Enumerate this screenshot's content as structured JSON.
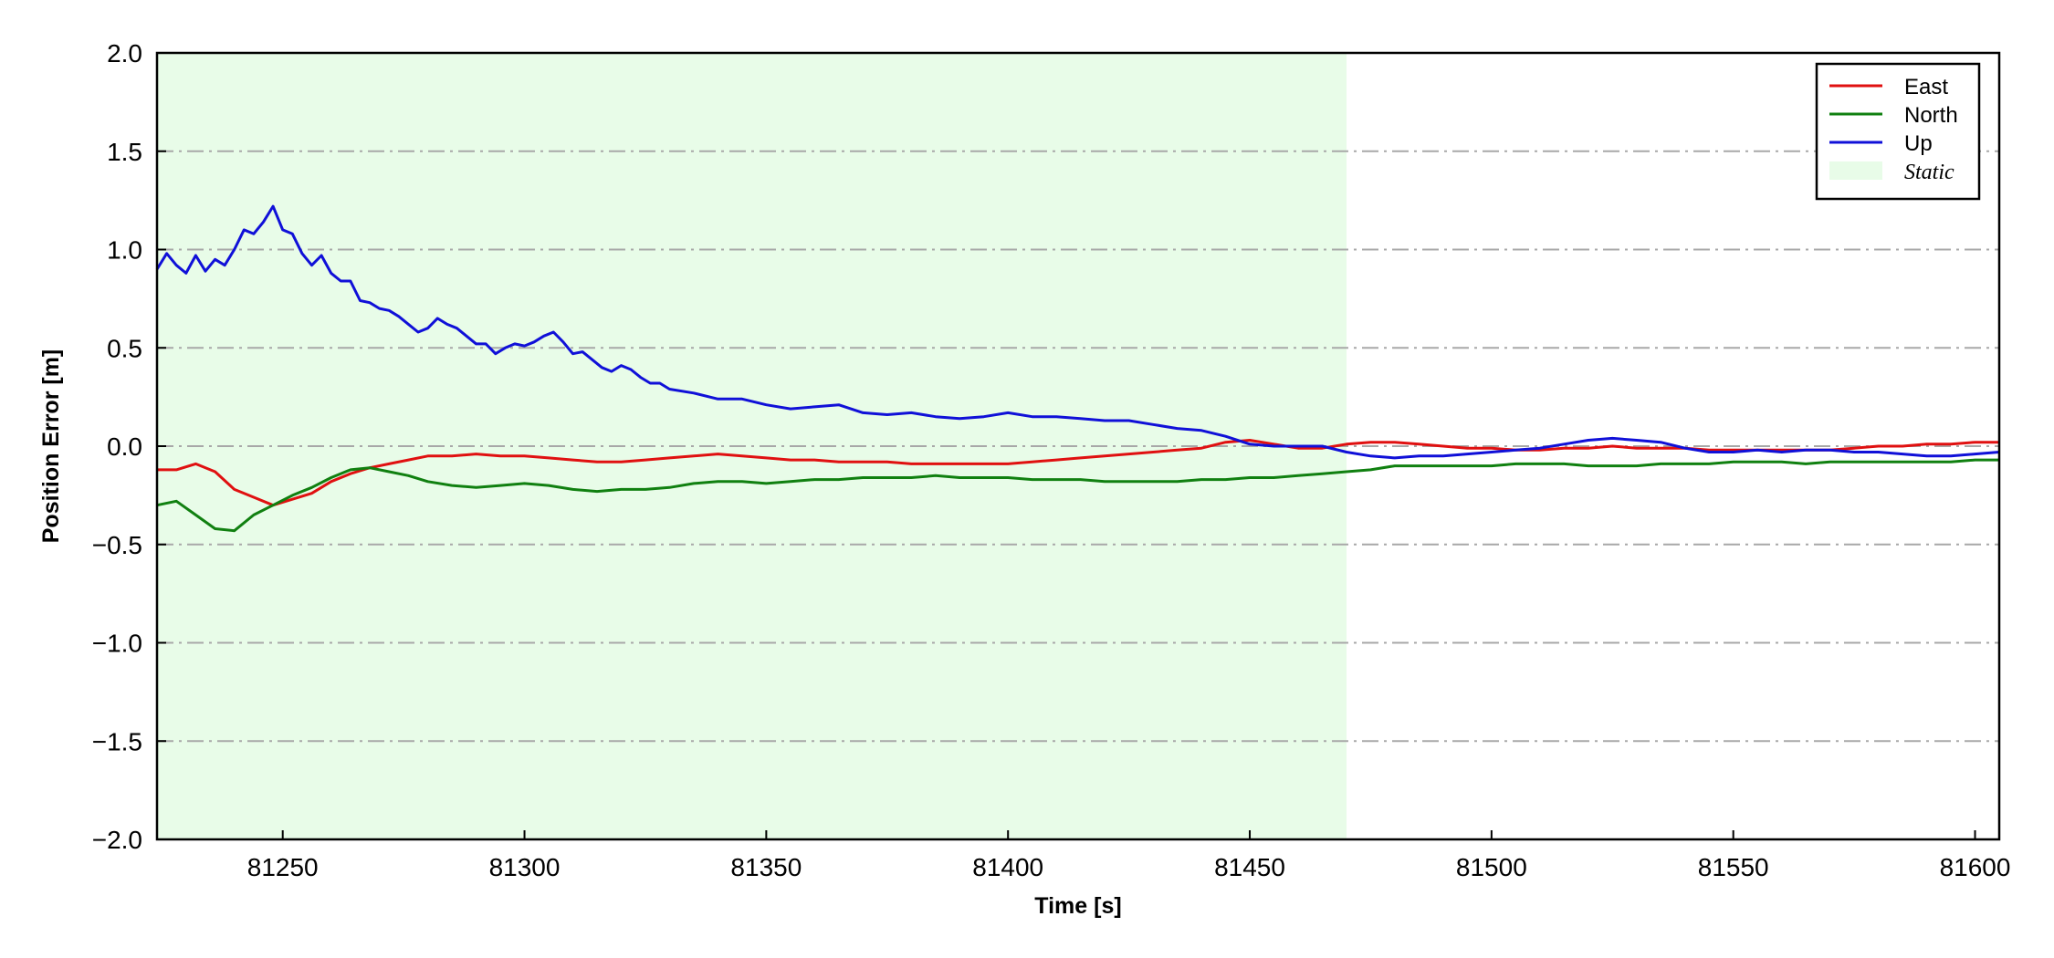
{
  "chart_data": {
    "type": "line",
    "title": "",
    "xlabel": "Time [s]",
    "ylabel": "Position Error [m]",
    "xlim": [
      81224,
      81605
    ],
    "ylim": [
      -2.0,
      2.0
    ],
    "xticks": [
      81250,
      81300,
      81350,
      81400,
      81450,
      81500,
      81550,
      81600
    ],
    "xtick_labels": [
      "81250",
      "81300",
      "81350",
      "81400",
      "81450",
      "81500",
      "81550",
      "81600"
    ],
    "yticks": [
      -2.0,
      -1.5,
      -1.0,
      -0.5,
      0.0,
      0.5,
      1.0,
      1.5,
      2.0
    ],
    "ytick_labels": [
      "−2.0",
      "−1.5",
      "−1.0",
      "−0.5",
      "0.0",
      "0.5",
      "1.0",
      "1.5",
      "2.0"
    ],
    "grid": "horizontal dash-dot",
    "legend_position": "top-right",
    "shaded_region": {
      "label": "Static",
      "x_start": 81224,
      "x_end": 81470,
      "color": "#e8fce8"
    },
    "series": [
      {
        "name": "East",
        "color": "#e01010",
        "points": [
          [
            81224,
            -0.12
          ],
          [
            81228,
            -0.12
          ],
          [
            81232,
            -0.09
          ],
          [
            81236,
            -0.13
          ],
          [
            81240,
            -0.22
          ],
          [
            81244,
            -0.26
          ],
          [
            81248,
            -0.3
          ],
          [
            81252,
            -0.27
          ],
          [
            81256,
            -0.24
          ],
          [
            81260,
            -0.18
          ],
          [
            81264,
            -0.14
          ],
          [
            81268,
            -0.11
          ],
          [
            81272,
            -0.09
          ],
          [
            81276,
            -0.07
          ],
          [
            81280,
            -0.05
          ],
          [
            81285,
            -0.05
          ],
          [
            81290,
            -0.04
          ],
          [
            81295,
            -0.05
          ],
          [
            81300,
            -0.05
          ],
          [
            81305,
            -0.06
          ],
          [
            81310,
            -0.07
          ],
          [
            81315,
            -0.08
          ],
          [
            81320,
            -0.08
          ],
          [
            81325,
            -0.07
          ],
          [
            81330,
            -0.06
          ],
          [
            81335,
            -0.05
          ],
          [
            81340,
            -0.04
          ],
          [
            81345,
            -0.05
          ],
          [
            81350,
            -0.06
          ],
          [
            81355,
            -0.07
          ],
          [
            81360,
            -0.07
          ],
          [
            81365,
            -0.08
          ],
          [
            81370,
            -0.08
          ],
          [
            81375,
            -0.08
          ],
          [
            81380,
            -0.09
          ],
          [
            81385,
            -0.09
          ],
          [
            81390,
            -0.09
          ],
          [
            81395,
            -0.09
          ],
          [
            81400,
            -0.09
          ],
          [
            81405,
            -0.08
          ],
          [
            81410,
            -0.07
          ],
          [
            81415,
            -0.06
          ],
          [
            81420,
            -0.05
          ],
          [
            81425,
            -0.04
          ],
          [
            81430,
            -0.03
          ],
          [
            81435,
            -0.02
          ],
          [
            81440,
            -0.01
          ],
          [
            81445,
            0.02
          ],
          [
            81450,
            0.03
          ],
          [
            81455,
            0.01
          ],
          [
            81460,
            -0.01
          ],
          [
            81465,
            -0.01
          ],
          [
            81470,
            0.01
          ],
          [
            81475,
            0.02
          ],
          [
            81480,
            0.02
          ],
          [
            81485,
            0.01
          ],
          [
            81490,
            0.0
          ],
          [
            81495,
            -0.01
          ],
          [
            81500,
            -0.01
          ],
          [
            81505,
            -0.02
          ],
          [
            81510,
            -0.02
          ],
          [
            81515,
            -0.01
          ],
          [
            81520,
            -0.01
          ],
          [
            81525,
            0.0
          ],
          [
            81530,
            -0.01
          ],
          [
            81535,
            -0.01
          ],
          [
            81540,
            -0.01
          ],
          [
            81545,
            -0.02
          ],
          [
            81550,
            -0.02
          ],
          [
            81555,
            -0.02
          ],
          [
            81560,
            -0.02
          ],
          [
            81565,
            -0.02
          ],
          [
            81570,
            -0.02
          ],
          [
            81575,
            -0.01
          ],
          [
            81580,
            0.0
          ],
          [
            81585,
            0.0
          ],
          [
            81590,
            0.01
          ],
          [
            81595,
            0.01
          ],
          [
            81600,
            0.02
          ],
          [
            81605,
            0.02
          ]
        ]
      },
      {
        "name": "North",
        "color": "#108010",
        "points": [
          [
            81224,
            -0.3
          ],
          [
            81228,
            -0.28
          ],
          [
            81232,
            -0.35
          ],
          [
            81236,
            -0.42
          ],
          [
            81240,
            -0.43
          ],
          [
            81244,
            -0.35
          ],
          [
            81248,
            -0.3
          ],
          [
            81252,
            -0.25
          ],
          [
            81256,
            -0.21
          ],
          [
            81260,
            -0.16
          ],
          [
            81264,
            -0.12
          ],
          [
            81268,
            -0.11
          ],
          [
            81272,
            -0.13
          ],
          [
            81276,
            -0.15
          ],
          [
            81280,
            -0.18
          ],
          [
            81285,
            -0.2
          ],
          [
            81290,
            -0.21
          ],
          [
            81295,
            -0.2
          ],
          [
            81300,
            -0.19
          ],
          [
            81305,
            -0.2
          ],
          [
            81310,
            -0.22
          ],
          [
            81315,
            -0.23
          ],
          [
            81320,
            -0.22
          ],
          [
            81325,
            -0.22
          ],
          [
            81330,
            -0.21
          ],
          [
            81335,
            -0.19
          ],
          [
            81340,
            -0.18
          ],
          [
            81345,
            -0.18
          ],
          [
            81350,
            -0.19
          ],
          [
            81355,
            -0.18
          ],
          [
            81360,
            -0.17
          ],
          [
            81365,
            -0.17
          ],
          [
            81370,
            -0.16
          ],
          [
            81375,
            -0.16
          ],
          [
            81380,
            -0.16
          ],
          [
            81385,
            -0.15
          ],
          [
            81390,
            -0.16
          ],
          [
            81395,
            -0.16
          ],
          [
            81400,
            -0.16
          ],
          [
            81405,
            -0.17
          ],
          [
            81410,
            -0.17
          ],
          [
            81415,
            -0.17
          ],
          [
            81420,
            -0.18
          ],
          [
            81425,
            -0.18
          ],
          [
            81430,
            -0.18
          ],
          [
            81435,
            -0.18
          ],
          [
            81440,
            -0.17
          ],
          [
            81445,
            -0.17
          ],
          [
            81450,
            -0.16
          ],
          [
            81455,
            -0.16
          ],
          [
            81460,
            -0.15
          ],
          [
            81465,
            -0.14
          ],
          [
            81470,
            -0.13
          ],
          [
            81475,
            -0.12
          ],
          [
            81480,
            -0.1
          ],
          [
            81485,
            -0.1
          ],
          [
            81490,
            -0.1
          ],
          [
            81495,
            -0.1
          ],
          [
            81500,
            -0.1
          ],
          [
            81505,
            -0.09
          ],
          [
            81510,
            -0.09
          ],
          [
            81515,
            -0.09
          ],
          [
            81520,
            -0.1
          ],
          [
            81525,
            -0.1
          ],
          [
            81530,
            -0.1
          ],
          [
            81535,
            -0.09
          ],
          [
            81540,
            -0.09
          ],
          [
            81545,
            -0.09
          ],
          [
            81550,
            -0.08
          ],
          [
            81555,
            -0.08
          ],
          [
            81560,
            -0.08
          ],
          [
            81565,
            -0.09
          ],
          [
            81570,
            -0.08
          ],
          [
            81575,
            -0.08
          ],
          [
            81580,
            -0.08
          ],
          [
            81585,
            -0.08
          ],
          [
            81590,
            -0.08
          ],
          [
            81595,
            -0.08
          ],
          [
            81600,
            -0.07
          ],
          [
            81605,
            -0.07
          ]
        ]
      },
      {
        "name": "Up",
        "color": "#1010d8",
        "points": [
          [
            81224,
            0.9
          ],
          [
            81226,
            0.98
          ],
          [
            81228,
            0.92
          ],
          [
            81230,
            0.88
          ],
          [
            81232,
            0.97
          ],
          [
            81234,
            0.89
          ],
          [
            81236,
            0.95
          ],
          [
            81238,
            0.92
          ],
          [
            81240,
            1.0
          ],
          [
            81242,
            1.1
          ],
          [
            81244,
            1.08
          ],
          [
            81246,
            1.14
          ],
          [
            81248,
            1.22
          ],
          [
            81250,
            1.1
          ],
          [
            81252,
            1.08
          ],
          [
            81254,
            0.98
          ],
          [
            81256,
            0.92
          ],
          [
            81258,
            0.97
          ],
          [
            81260,
            0.88
          ],
          [
            81262,
            0.84
          ],
          [
            81264,
            0.84
          ],
          [
            81266,
            0.74
          ],
          [
            81268,
            0.73
          ],
          [
            81270,
            0.7
          ],
          [
            81272,
            0.69
          ],
          [
            81274,
            0.66
          ],
          [
            81276,
            0.62
          ],
          [
            81278,
            0.58
          ],
          [
            81280,
            0.6
          ],
          [
            81282,
            0.65
          ],
          [
            81284,
            0.62
          ],
          [
            81286,
            0.6
          ],
          [
            81288,
            0.56
          ],
          [
            81290,
            0.52
          ],
          [
            81292,
            0.52
          ],
          [
            81294,
            0.47
          ],
          [
            81296,
            0.5
          ],
          [
            81298,
            0.52
          ],
          [
            81300,
            0.51
          ],
          [
            81302,
            0.53
          ],
          [
            81304,
            0.56
          ],
          [
            81306,
            0.58
          ],
          [
            81308,
            0.53
          ],
          [
            81310,
            0.47
          ],
          [
            81312,
            0.48
          ],
          [
            81314,
            0.44
          ],
          [
            81316,
            0.4
          ],
          [
            81318,
            0.38
          ],
          [
            81320,
            0.41
          ],
          [
            81322,
            0.39
          ],
          [
            81324,
            0.35
          ],
          [
            81326,
            0.32
          ],
          [
            81328,
            0.32
          ],
          [
            81330,
            0.29
          ],
          [
            81335,
            0.27
          ],
          [
            81340,
            0.24
          ],
          [
            81345,
            0.24
          ],
          [
            81350,
            0.21
          ],
          [
            81355,
            0.19
          ],
          [
            81360,
            0.2
          ],
          [
            81365,
            0.21
          ],
          [
            81370,
            0.17
          ],
          [
            81375,
            0.16
          ],
          [
            81380,
            0.17
          ],
          [
            81385,
            0.15
          ],
          [
            81390,
            0.14
          ],
          [
            81395,
            0.15
          ],
          [
            81400,
            0.17
          ],
          [
            81405,
            0.15
          ],
          [
            81410,
            0.15
          ],
          [
            81415,
            0.14
          ],
          [
            81420,
            0.13
          ],
          [
            81425,
            0.13
          ],
          [
            81430,
            0.11
          ],
          [
            81435,
            0.09
          ],
          [
            81440,
            0.08
          ],
          [
            81445,
            0.05
          ],
          [
            81450,
            0.01
          ],
          [
            81455,
            0.0
          ],
          [
            81460,
            0.0
          ],
          [
            81465,
            0.0
          ],
          [
            81470,
            -0.03
          ],
          [
            81475,
            -0.05
          ],
          [
            81480,
            -0.06
          ],
          [
            81485,
            -0.05
          ],
          [
            81490,
            -0.05
          ],
          [
            81495,
            -0.04
          ],
          [
            81500,
            -0.03
          ],
          [
            81505,
            -0.02
          ],
          [
            81510,
            -0.01
          ],
          [
            81515,
            0.01
          ],
          [
            81520,
            0.03
          ],
          [
            81525,
            0.04
          ],
          [
            81530,
            0.03
          ],
          [
            81535,
            0.02
          ],
          [
            81540,
            -0.01
          ],
          [
            81545,
            -0.03
          ],
          [
            81550,
            -0.03
          ],
          [
            81555,
            -0.02
          ],
          [
            81560,
            -0.03
          ],
          [
            81565,
            -0.02
          ],
          [
            81570,
            -0.02
          ],
          [
            81575,
            -0.03
          ],
          [
            81580,
            -0.03
          ],
          [
            81585,
            -0.04
          ],
          [
            81590,
            -0.05
          ],
          [
            81595,
            -0.05
          ],
          [
            81600,
            -0.04
          ],
          [
            81605,
            -0.03
          ]
        ]
      }
    ]
  }
}
